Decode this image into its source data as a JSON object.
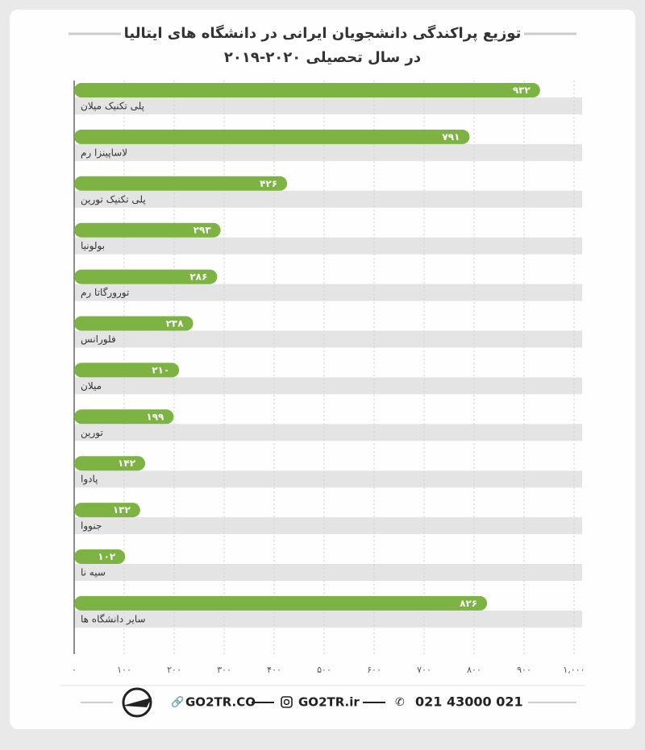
{
  "chart_data": {
    "type": "bar",
    "orientation": "horizontal",
    "title": "توزیع پراکندگی دانشجویان ایرانی در دانشگاه های ایتالیا",
    "subtitle": "در سال تحصیلی ۲۰۲۰-۲۰۱۹",
    "categories": [
      "پلی تکنیک میلان",
      "لاساپینزا رم",
      "پلی تکنیک تورین",
      "بولونیا",
      "تورورگاتا رم",
      "فلورانس",
      "میلان",
      "تورین",
      "پادوا",
      "جنووا",
      "سیه نا",
      "سایر دانشگاه ها"
    ],
    "values": [
      932,
      791,
      426,
      293,
      286,
      238,
      210,
      199,
      142,
      132,
      102,
      826
    ],
    "value_labels": [
      "۹۳۲",
      "۷۹۱",
      "۴۲۶",
      "۲۹۳",
      "۲۸۶",
      "۲۳۸",
      "۲۱۰",
      "۱۹۹",
      "۱۴۲",
      "۱۳۲",
      "۱۰۲",
      "۸۲۶"
    ],
    "color": "#7cb342",
    "xlim": [
      0,
      1000
    ],
    "xticks": [
      {
        "value": 0,
        "label": "۰"
      },
      {
        "value": 100,
        "label": "۱۰۰"
      },
      {
        "value": 200,
        "label": "۲۰۰"
      },
      {
        "value": 300,
        "label": "۳۰۰"
      },
      {
        "value": 400,
        "label": "۴۰۰"
      },
      {
        "value": 500,
        "label": "۵۰۰"
      },
      {
        "value": 600,
        "label": "۶۰۰"
      },
      {
        "value": 700,
        "label": "۷۰۰"
      },
      {
        "value": 800,
        "label": "۸۰۰"
      },
      {
        "value": 900,
        "label": "۹۰۰"
      },
      {
        "value": 1000,
        "label": "۱,۰۰۰"
      }
    ],
    "grid": true
  },
  "footer": {
    "website": "GO2TR.CO",
    "instagram": "GO2TR.ir",
    "phone": "021 43000 021"
  }
}
